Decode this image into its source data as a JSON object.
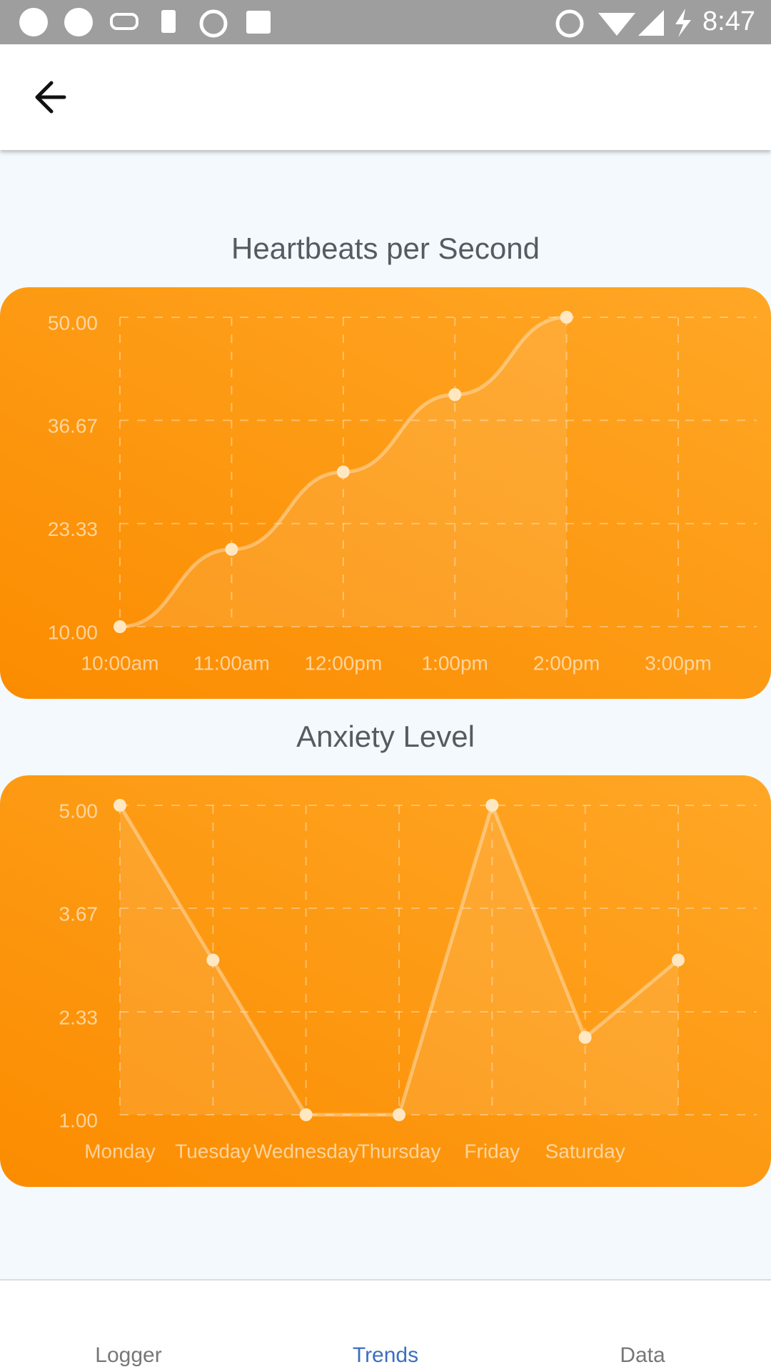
{
  "status_bar": {
    "time": "8:47"
  },
  "chart_data": [
    {
      "type": "line",
      "title": "Heartbeats per Second",
      "smooth": true,
      "color": "#ffffff",
      "grid": true,
      "categories": [
        "10:00am",
        "11:00am",
        "12:00pm",
        "1:00pm",
        "2:00pm",
        "3:00pm"
      ],
      "values": [
        10,
        20,
        30,
        40,
        50,
        null
      ],
      "ylim": [
        10,
        50
      ],
      "yticks": [
        {
          "value": 10,
          "label": "10.00"
        },
        {
          "value": 23.33,
          "label": "23.33"
        },
        {
          "value": 36.67,
          "label": "36.67"
        },
        {
          "value": 50,
          "label": "50.00"
        }
      ]
    },
    {
      "type": "line",
      "title": "Anxiety Level",
      "smooth": false,
      "color": "#ffffff",
      "grid": true,
      "categories": [
        "Monday",
        "Tuesday",
        "Wednesday",
        "Thursday",
        "Friday",
        "Saturday",
        null
      ],
      "values": [
        5,
        3,
        1,
        1,
        5,
        2,
        3
      ],
      "ylim": [
        1,
        5
      ],
      "yticks": [
        {
          "value": 1,
          "label": "1.00"
        },
        {
          "value": 2.33,
          "label": "2.33"
        },
        {
          "value": 3.67,
          "label": "3.67"
        },
        {
          "value": 5,
          "label": "5.00"
        }
      ]
    }
  ],
  "nav": {
    "tabs": [
      "Logger",
      "Trends",
      "Data"
    ],
    "active": 1,
    "active_color": "#3b6fc1",
    "color": "#777777"
  }
}
